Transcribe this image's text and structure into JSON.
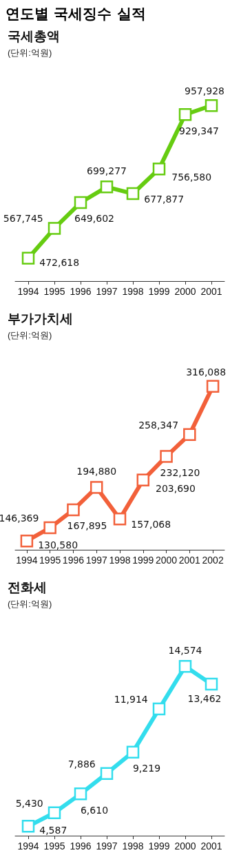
{
  "chart_data": [
    {
      "type": "line",
      "title": "국세총액",
      "subtitle": "(단위:억원)",
      "annotations": [
        "연도별 국세징수 실적"
      ],
      "categories": [
        "1994",
        "1995",
        "1996",
        "1997",
        "1998",
        "1999",
        "2000",
        "2001"
      ],
      "series": [
        {
          "color": "#66cc11",
          "values": [
            472618,
            567745,
            649602,
            699277,
            677877,
            756580,
            929347,
            957928
          ],
          "value_labels": [
            "472,618",
            "567,745",
            "649,602",
            "699,277",
            "677,877",
            "756,580",
            "929,347",
            "957,928"
          ]
        }
      ],
      "marker": "square"
    },
    {
      "type": "line",
      "title": "부가가치세",
      "subtitle": "(단위:억원)",
      "categories": [
        "1994",
        "1995",
        "1996",
        "1997",
        "1998",
        "1999",
        "2000",
        "2001",
        "2002"
      ],
      "series": [
        {
          "color": "#f2603a",
          "values": [
            130580,
            146369,
            167895,
            194880,
            157068,
            203690,
            232120,
            258347,
            316088
          ],
          "value_labels": [
            "130,580",
            "146,369",
            "167,895",
            "194,880",
            "157,068",
            "203,690",
            "232,120",
            "258,347",
            "316,088"
          ]
        }
      ],
      "marker": "square"
    },
    {
      "type": "line",
      "title": "전화세",
      "subtitle": "(단위:억원)",
      "categories": [
        "1994",
        "1995",
        "1996",
        "1997",
        "1998",
        "1999",
        "2000",
        "2001"
      ],
      "series": [
        {
          "color": "#33dded",
          "values": [
            4587,
            5430,
            6610,
            7886,
            9219,
            11914,
            14574,
            13462
          ],
          "value_labels": [
            "4,587",
            "5,430",
            "6,610",
            "7,886",
            "9,219",
            "11,914",
            "14,574",
            "13,462"
          ]
        }
      ],
      "marker": "square"
    }
  ]
}
